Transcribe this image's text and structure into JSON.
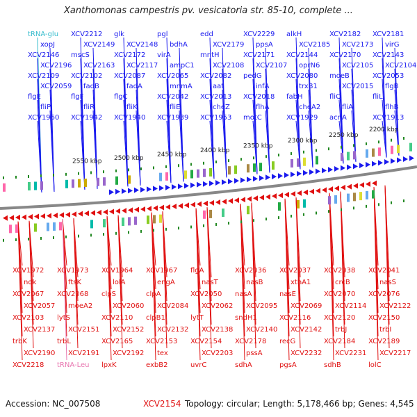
{
  "title": "Xanthomonas campestris pv. vesicatoria str. 85-10, complete ...",
  "footer": {
    "accession": "Accession: NC_007508",
    "highlighted_gene": "XCV2154",
    "info": "Topology: circular; Length: 5,178,466 bp; Genes: 4,545"
  },
  "colors": {
    "forward": "#1a1aee",
    "reverse": "#e01010",
    "trna": "#33bbcc",
    "trna_rev": "#e877b0",
    "backbone": "#888888",
    "tick": "#228822"
  },
  "kbp_labels": [
    "2200 kbp",
    "2250 kbp",
    "2300 kbp",
    "2350 kbp",
    "2400 kbp",
    "2450 kbp",
    "2500 kbp",
    "2550 kbp"
  ],
  "top_genes": [
    "tRNA-glu",
    "XCV2212",
    "glk",
    "pgl",
    "edd",
    "XCV2229",
    "alkH",
    "XCV2182",
    "XCV2181",
    "xopJ",
    "XCV2149",
    "XCV2148",
    "bdhA",
    "XCV2179",
    "ppsA",
    "XCV2185",
    "XCV2173",
    "virG",
    "XCV2146",
    "mscS",
    "XCV2172",
    "virA",
    "mntH",
    "XCV2171",
    "XCV2144",
    "XCV2170",
    "XCV2143",
    "XCV2196",
    "XCV2163",
    "XCV2117",
    "ampC1",
    "XCV2108",
    "XCV2107",
    "oprN6",
    "XCV2105",
    "XCV2104",
    "XCV2109",
    "XCV2102",
    "XCV2087",
    "XCV2065",
    "XCV2082",
    "pedG",
    "XCV2080",
    "moeB",
    "XCV2053",
    "XCV2059",
    "fadB",
    "fadA",
    "mnmA",
    "aat",
    "infA",
    "trxB1",
    "XCV2015",
    "flgB",
    "flgE",
    "flgF",
    "flgC",
    "XCV2042",
    "XCV2013",
    "XCV2018",
    "fabH",
    "fliQ",
    "fliL",
    "fliP",
    "fliR",
    "fliK",
    "fliE",
    "cheZ",
    "flhA",
    "cheA2",
    "fliA",
    "flhB",
    "XCV1960",
    "XCV1942",
    "XCV1940",
    "XCV1939",
    "XCV1953",
    "motC",
    "XCV1929",
    "acnA",
    "XCV1913"
  ],
  "bottom_genes": [
    "XCV1972",
    "XCV1973",
    "XCV1964",
    "XCV1967",
    "flgA",
    "XCV2036",
    "XCV2037",
    "XCV2038",
    "XCV2041",
    "ndk",
    "ftsK",
    "lolA",
    "engA",
    "nasT",
    "nasB",
    "xthA1",
    "crcB",
    "nasS",
    "XCV2067",
    "XCV2068",
    "clpS",
    "clpA",
    "XCV2050",
    "nasA",
    "nasE",
    "XCV2070",
    "XCV2076",
    "XCV2057",
    "moeA2",
    "XCV2060",
    "XCV2084",
    "XCV2062",
    "XCV2095",
    "XCV2069",
    "XCV2114",
    "XCV2122",
    "XCV2103",
    "lytS",
    "XCV2110",
    "clpB1",
    "lytT",
    "sndH1",
    "XCV2116",
    "XCV2120",
    "XCV2150",
    "XCV2137",
    "XCV2151",
    "XCV2152",
    "XCV2132",
    "XCV2138",
    "XCV2140",
    "XCV2142",
    "trbJ",
    "trbI",
    "trbK",
    "trbL",
    "XCV2165",
    "XCV2153",
    "XCV2154",
    "XCV2178",
    "recG",
    "XCV2184",
    "XCV2189",
    "XCV2190",
    "XCV2191",
    "XCV2192",
    "tex",
    "XCV2203",
    "pssA",
    "XCV2232",
    "XCV2231",
    "XCV2217",
    "XCV2218",
    "tRNA-Leu",
    "lpxK",
    "exbB2",
    "uvrC",
    "sdhA",
    "pgsA",
    "sdhB",
    "lolC"
  ]
}
